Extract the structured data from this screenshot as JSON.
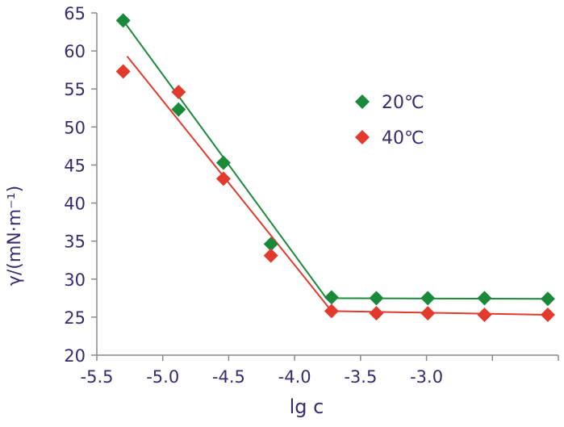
{
  "chart_data": {
    "type": "scatter",
    "xlabel": "lg c",
    "ylabel": "γ/(mN·m⁻¹)",
    "xlim": [
      -5.5,
      -2.0
    ],
    "ylim": [
      20,
      65
    ],
    "x_ticks": [
      -5.5,
      -5.0,
      -4.5,
      -4.0,
      -3.5,
      -3.0
    ],
    "x_tick_labels": [
      "-5.5",
      "-5.0",
      "-4.5",
      "-4.0",
      "-3.5",
      "-3.0"
    ],
    "y_ticks": [
      20,
      25,
      30,
      35,
      40,
      45,
      50,
      55,
      60,
      65
    ],
    "y_tick_labels": [
      "20",
      "25",
      "30",
      "35",
      "40",
      "45",
      "50",
      "55",
      "60",
      "65"
    ],
    "legend_position": "upper-right",
    "series": [
      {
        "name": "20℃",
        "color": "#1a8a3a",
        "marker": "diamond",
        "x": [
          -5.3,
          -4.88,
          -4.54,
          -4.18,
          -3.72,
          -3.38,
          -2.99,
          -2.56,
          -2.08
        ],
        "y": [
          64.0,
          52.3,
          45.3,
          34.6,
          27.6,
          27.5,
          27.5,
          27.5,
          27.4
        ],
        "fit_line": {
          "x": [
            -5.3,
            -3.76,
            -2.08
          ],
          "y": [
            64.0,
            27.5,
            27.4
          ]
        }
      },
      {
        "name": "40℃",
        "color": "#e33a2e",
        "marker": "diamond",
        "x": [
          -5.3,
          -4.88,
          -4.54,
          -4.18,
          -3.72,
          -3.38,
          -2.99,
          -2.56,
          -2.08
        ],
        "y": [
          57.3,
          54.6,
          43.2,
          33.1,
          25.8,
          25.5,
          25.5,
          25.3,
          25.3
        ],
        "fit_line": {
          "x": [
            -5.27,
            -3.72,
            -2.08
          ],
          "y": [
            59.3,
            25.8,
            25.3
          ]
        }
      }
    ]
  }
}
